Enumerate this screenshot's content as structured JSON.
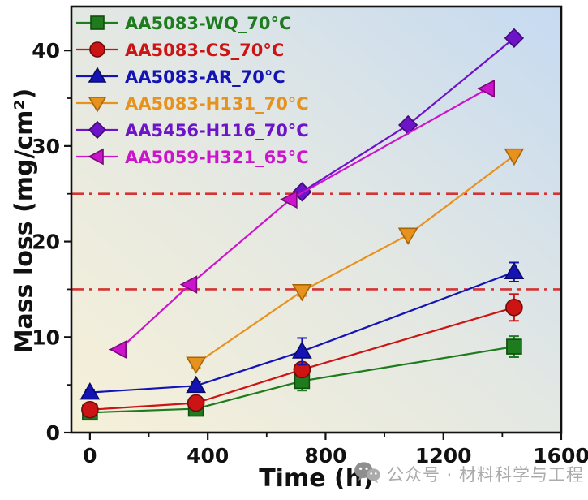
{
  "figure": {
    "watermark": "公众号 · 材料科学与工程"
  },
  "chart_data": {
    "type": "line",
    "title": "",
    "xlabel": "Time (h)",
    "ylabel": "Mass loss (mg/cm²)",
    "xlim": [
      -63,
      1600
    ],
    "ylim": [
      0,
      44.6
    ],
    "x_ticks": [
      0,
      400,
      800,
      1200,
      1600
    ],
    "x_minor_ticks": [
      200,
      600,
      1000,
      1400
    ],
    "y_ticks": [
      0,
      10,
      20,
      30,
      40
    ],
    "y_minor_ticks": [
      5,
      15,
      25,
      35
    ],
    "grid": false,
    "legend_position": "top-left",
    "reference_lines": [
      {
        "y": 15,
        "color": "#d43434",
        "style": "dash-dot"
      },
      {
        "y": 25,
        "color": "#d43434",
        "style": "dash-dot"
      }
    ],
    "series": [
      {
        "name": "AA5083-WQ_70°C",
        "color": "#1e7b1e",
        "edge": "#0f4d0f",
        "marker": "square",
        "x": [
          0,
          360,
          720,
          1440
        ],
        "y": [
          2.1,
          2.5,
          5.4,
          9.0
        ],
        "yerr": [
          0.3,
          0.5,
          1.0,
          1.1
        ]
      },
      {
        "name": "AA5083-CS_70°C",
        "color": "#cc1414",
        "edge": "#6e0b0b",
        "marker": "circle",
        "x": [
          0,
          360,
          720,
          1440
        ],
        "y": [
          2.4,
          3.1,
          6.6,
          13.1
        ],
        "yerr": [
          0.3,
          0.4,
          0.7,
          1.4
        ]
      },
      {
        "name": "AA5083-AR_70°C",
        "color": "#1414b4",
        "edge": "#0a0a64",
        "marker": "triangle-up",
        "x": [
          0,
          360,
          720,
          1440
        ],
        "y": [
          4.2,
          4.9,
          8.5,
          16.8
        ],
        "yerr": [
          0.3,
          0.4,
          1.4,
          1.0
        ]
      },
      {
        "name": "AA5083-H131_70°C",
        "color": "#e8921e",
        "edge": "#a5650d",
        "marker": "triangle-down",
        "x": [
          360,
          720,
          1080,
          1440
        ],
        "y": [
          7.2,
          14.8,
          20.7,
          29.0
        ],
        "yerr": [
          0.4,
          0.5,
          0,
          0
        ]
      },
      {
        "name": "AA5456-H116_70°C",
        "color": "#6e14c8",
        "edge": "#3f0a78",
        "marker": "diamond",
        "x": [
          720,
          1080,
          1440
        ],
        "y": [
          25.2,
          32.2,
          41.3
        ],
        "yerr": [
          0,
          0,
          0
        ]
      },
      {
        "name": "AA5059-H321_65°C",
        "color": "#cc14cc",
        "edge": "#780a78",
        "marker": "triangle-left",
        "x": [
          100,
          340,
          680,
          1350
        ],
        "y": [
          8.7,
          15.5,
          24.4,
          36.0
        ],
        "yerr": [
          0,
          0,
          0,
          0
        ]
      }
    ]
  },
  "style": {
    "axis_color": "#111111",
    "tick_label_color": "#111111",
    "plot_gradient": [
      "#c6daf1",
      "#e4e8e3",
      "#f6f0d8"
    ],
    "watermark_color": "#ababab"
  }
}
